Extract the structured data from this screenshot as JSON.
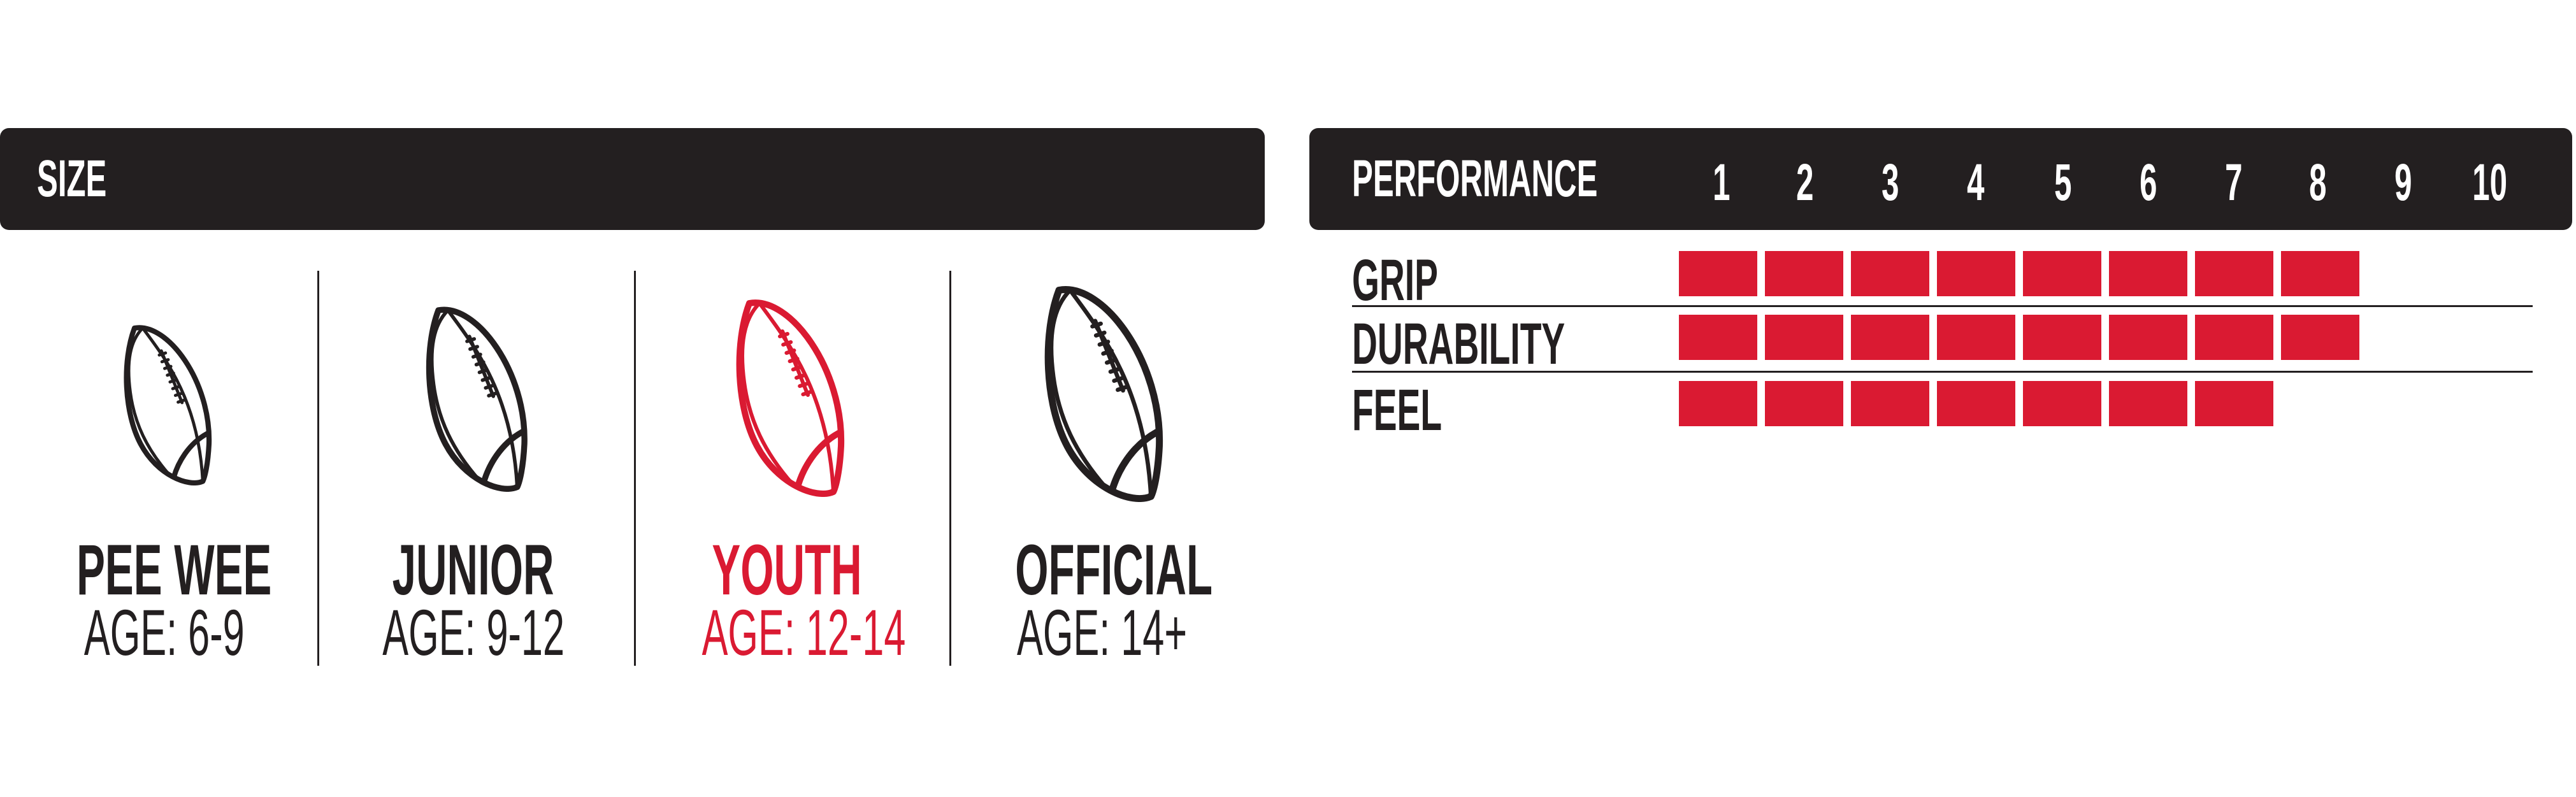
{
  "size_panel": {
    "header": "SIZE",
    "items": [
      {
        "name": "PEE WEE",
        "age": "AGE: 6-9",
        "highlighted": false,
        "icon": "football-icon"
      },
      {
        "name": "JUNIOR",
        "age": "AGE: 9-12",
        "highlighted": false,
        "icon": "football-icon"
      },
      {
        "name": "YOUTH",
        "age": "AGE: 12-14",
        "highlighted": true,
        "icon": "football-icon"
      },
      {
        "name": "OFFICIAL",
        "age": "AGE: 14+",
        "highlighted": false,
        "icon": "football-icon"
      }
    ]
  },
  "performance_panel": {
    "header": "PERFORMANCE",
    "scale": [
      "1",
      "2",
      "3",
      "4",
      "5",
      "6",
      "7",
      "8",
      "9",
      "10"
    ],
    "rows": [
      {
        "label": "GRIP",
        "value": 8
      },
      {
        "label": "DURABILITY",
        "value": 8
      },
      {
        "label": "FEEL",
        "value": 7
      }
    ]
  },
  "colors": {
    "dark": "#231f20",
    "accent": "#da1a32"
  }
}
